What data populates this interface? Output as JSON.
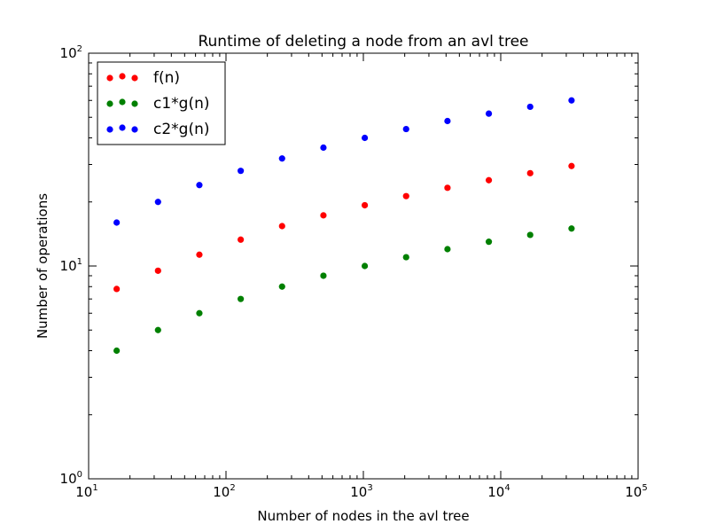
{
  "chart_data": {
    "type": "scatter",
    "title": "Runtime of deleting a node from an avl tree",
    "xlabel": "Number of nodes in the avl tree",
    "ylabel": "Number of operations",
    "xscale": "log",
    "yscale": "log",
    "xlim": [
      10,
      100000
    ],
    "ylim": [
      1,
      100
    ],
    "grid": false,
    "legend_position": "top-left",
    "x_ticks": [
      {
        "value": 10,
        "base": "10",
        "exp": "1"
      },
      {
        "value": 100,
        "base": "10",
        "exp": "2"
      },
      {
        "value": 1000,
        "base": "10",
        "exp": "3"
      },
      {
        "value": 10000,
        "base": "10",
        "exp": "4"
      },
      {
        "value": 100000,
        "base": "10",
        "exp": "5"
      }
    ],
    "y_ticks": [
      {
        "value": 1,
        "base": "10",
        "exp": "0"
      },
      {
        "value": 10,
        "base": "10",
        "exp": "1"
      },
      {
        "value": 100,
        "base": "10",
        "exp": "2"
      }
    ],
    "x": [
      16,
      32,
      64,
      128,
      256,
      512,
      1024,
      2048,
      4096,
      8192,
      16384,
      32768
    ],
    "series": [
      {
        "name": "f(n)",
        "color": "#ff0000",
        "values": [
          7.8,
          9.5,
          11.3,
          13.3,
          15.4,
          17.3,
          19.3,
          21.3,
          23.3,
          25.3,
          27.3,
          29.5
        ]
      },
      {
        "name": "c1*g(n)",
        "color": "#008000",
        "values": [
          4,
          5,
          6,
          7,
          8,
          9,
          10,
          11,
          12,
          13,
          14,
          15
        ]
      },
      {
        "name": "c2*g(n)",
        "color": "#0000ff",
        "values": [
          16,
          20,
          24,
          28,
          32,
          36,
          40,
          44,
          48,
          52,
          56,
          60
        ]
      }
    ]
  }
}
